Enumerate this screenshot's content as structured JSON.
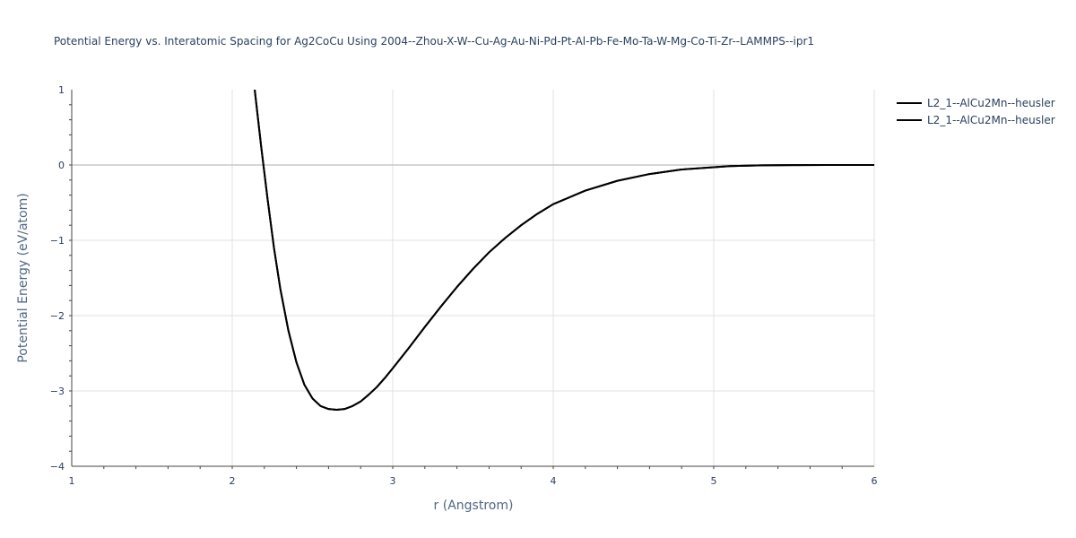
{
  "chart_data": {
    "type": "line",
    "title": "Potential Energy vs. Interatomic Spacing for Ag2CoCu Using 2004--Zhou-X-W--Cu-Ag-Au-Ni-Pd-Pt-Al-Pb-Fe-Mo-Ta-W-Mg-Co-Ti-Zr--LAMMPS--ipr1",
    "xlabel": "r (Angstrom)",
    "ylabel": "Potential Energy (eV/atom)",
    "xlim": [
      1,
      6
    ],
    "ylim": [
      -4,
      1
    ],
    "x_ticks": [
      "1",
      "2",
      "3",
      "4",
      "5",
      "6"
    ],
    "y_ticks": [
      "1",
      "0",
      "−1",
      "−2",
      "−3",
      "−4"
    ],
    "grid": true,
    "legend_position": "top-right",
    "series": [
      {
        "name": "L2_1--AlCu2Mn--heusler",
        "color": "#000000",
        "x": [
          2.14,
          2.18,
          2.22,
          2.26,
          2.3,
          2.35,
          2.4,
          2.45,
          2.5,
          2.55,
          2.6,
          2.65,
          2.7,
          2.75,
          2.8,
          2.85,
          2.9,
          2.95,
          3.0,
          3.1,
          3.2,
          3.3,
          3.4,
          3.5,
          3.6,
          3.7,
          3.8,
          3.9,
          4.0,
          4.2,
          4.4,
          4.6,
          4.8,
          5.0,
          5.1,
          5.3,
          5.5,
          5.7,
          6.0
        ],
        "y": [
          1.0,
          0.25,
          -0.45,
          -1.1,
          -1.65,
          -2.2,
          -2.62,
          -2.92,
          -3.1,
          -3.2,
          -3.24,
          -3.25,
          -3.24,
          -3.2,
          -3.14,
          -3.05,
          -2.95,
          -2.83,
          -2.7,
          -2.43,
          -2.15,
          -1.88,
          -1.62,
          -1.38,
          -1.16,
          -0.97,
          -0.8,
          -0.65,
          -0.52,
          -0.34,
          -0.21,
          -0.12,
          -0.06,
          -0.03,
          -0.015,
          -0.005,
          -0.002,
          0.0,
          0.0
        ]
      },
      {
        "name": "L2_1--AlCu2Mn--heusler",
        "color": "#000000",
        "x": [
          2.14,
          2.18,
          2.22,
          2.26,
          2.3,
          2.35,
          2.4,
          2.45,
          2.5,
          2.55,
          2.6,
          2.65,
          2.7,
          2.75,
          2.8,
          2.85,
          2.9,
          2.95,
          3.0,
          3.1,
          3.2,
          3.3,
          3.4,
          3.5,
          3.6,
          3.7,
          3.8,
          3.9,
          4.0,
          4.2,
          4.4,
          4.6,
          4.8,
          5.0,
          5.1,
          5.3,
          5.5,
          5.7,
          6.0
        ],
        "y": [
          1.0,
          0.25,
          -0.45,
          -1.1,
          -1.65,
          -2.2,
          -2.62,
          -2.92,
          -3.1,
          -3.2,
          -3.24,
          -3.25,
          -3.24,
          -3.2,
          -3.14,
          -3.05,
          -2.95,
          -2.83,
          -2.7,
          -2.43,
          -2.15,
          -1.88,
          -1.62,
          -1.38,
          -1.16,
          -0.97,
          -0.8,
          -0.65,
          -0.52,
          -0.34,
          -0.21,
          -0.12,
          -0.06,
          -0.03,
          -0.015,
          -0.005,
          -0.002,
          0.0,
          0.0
        ]
      }
    ]
  }
}
